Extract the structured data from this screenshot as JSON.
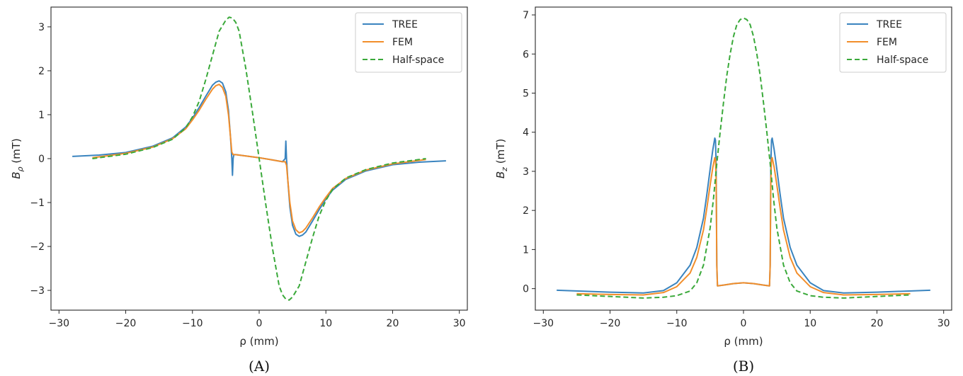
{
  "colors": {
    "TREE": "#3a84bf",
    "FEM": "#f28e2b",
    "Half-space": "#3aa93a",
    "axes": "#262626",
    "text": "#262626"
  },
  "chart_data": [
    {
      "type": "line",
      "panel_caption": "(A)",
      "title": "",
      "xlabel": "ρ (mm)",
      "ylabel_base": "B",
      "ylabel_sub": "ρ",
      "ylabel_unit": " (mT)",
      "xlim": [
        -31.2,
        31.2
      ],
      "ylim": [
        -3.45,
        3.45
      ],
      "xticks": [
        -30,
        -20,
        -10,
        0,
        10,
        20,
        30
      ],
      "xtick_labels": [
        "−30",
        "−20",
        "−10",
        "0",
        "10",
        "20",
        "30"
      ],
      "yticks": [
        -3,
        -2,
        -1,
        0,
        1,
        2,
        3
      ],
      "ytick_labels": [
        "−3",
        "−2",
        "−1",
        "0",
        "1",
        "2",
        "3"
      ],
      "grid": false,
      "legend_position": "top-right",
      "series": [
        {
          "name": "TREE",
          "style": "solid",
          "x": [
            -28,
            -24,
            -20,
            -16,
            -13,
            -11,
            -10,
            -9,
            -8,
            -7,
            -6.5,
            -6,
            -5.5,
            -5,
            -4.6,
            -4.3,
            -4.1,
            -4.0,
            -3.9,
            -3.8,
            -3.5,
            -2,
            0,
            2,
            3.5,
            3.9,
            4.0,
            4.1,
            4.3,
            4.6,
            5,
            5.5,
            6,
            6.5,
            7,
            8,
            9,
            10,
            11,
            13,
            16,
            20,
            24,
            28
          ],
          "y": [
            0.05,
            0.08,
            0.14,
            0.28,
            0.47,
            0.72,
            0.92,
            1.16,
            1.42,
            1.67,
            1.74,
            1.77,
            1.72,
            1.52,
            1.1,
            0.5,
            0.0,
            -0.38,
            0.0,
            0.09,
            0.09,
            0.06,
            0.02,
            -0.03,
            -0.07,
            0.0,
            0.4,
            0.0,
            -0.5,
            -1.1,
            -1.52,
            -1.72,
            -1.77,
            -1.74,
            -1.67,
            -1.42,
            -1.16,
            -0.92,
            -0.72,
            -0.47,
            -0.28,
            -0.14,
            -0.08,
            -0.05
          ]
        },
        {
          "name": "FEM",
          "style": "solid",
          "x": [
            -25,
            -20,
            -16,
            -13,
            -11,
            -10,
            -9,
            -8,
            -7,
            -6.5,
            -6,
            -5.5,
            -5,
            -4.6,
            -4.3,
            -4.1,
            -3.9,
            -3.5,
            -2,
            0,
            2,
            3.5,
            3.9,
            4.1,
            4.3,
            4.6,
            5,
            5.5,
            6,
            6.5,
            7,
            8,
            9,
            10,
            11,
            13,
            16,
            20,
            25
          ],
          "y": [
            0.02,
            0.12,
            0.26,
            0.45,
            0.68,
            0.88,
            1.1,
            1.35,
            1.58,
            1.66,
            1.69,
            1.62,
            1.42,
            1.0,
            0.5,
            0.15,
            0.09,
            0.09,
            0.06,
            0.02,
            -0.03,
            -0.07,
            -0.07,
            -0.15,
            -0.5,
            -1.0,
            -1.42,
            -1.62,
            -1.69,
            -1.66,
            -1.58,
            -1.35,
            -1.1,
            -0.88,
            -0.68,
            -0.45,
            -0.26,
            -0.12,
            -0.02
          ]
        },
        {
          "name": "Half-space",
          "style": "dashed",
          "x": [
            -25,
            -20,
            -16,
            -13,
            -11,
            -10,
            -9,
            -8,
            -7,
            -6,
            -5,
            -4.5,
            -4,
            -3.5,
            -3,
            -2,
            -1,
            0,
            1,
            2,
            3,
            3.5,
            4,
            4.5,
            5,
            6,
            7,
            8,
            9,
            10,
            11,
            13,
            16,
            20,
            25
          ],
          "y": [
            0.0,
            0.1,
            0.25,
            0.44,
            0.7,
            0.95,
            1.3,
            1.8,
            2.35,
            2.9,
            3.15,
            3.22,
            3.2,
            3.1,
            2.9,
            2.05,
            1.05,
            0.0,
            -1.05,
            -2.05,
            -2.9,
            -3.1,
            -3.2,
            -3.22,
            -3.15,
            -2.9,
            -2.35,
            -1.8,
            -1.3,
            -0.95,
            -0.7,
            -0.44,
            -0.25,
            -0.1,
            0.0
          ]
        }
      ]
    },
    {
      "type": "line",
      "panel_caption": "(B)",
      "title": "",
      "xlabel": "ρ (mm)",
      "ylabel_base": "B",
      "ylabel_sub": "z",
      "ylabel_unit": " (mT)",
      "xlim": [
        -31.2,
        31.2
      ],
      "ylim": [
        -0.55,
        7.2
      ],
      "xticks": [
        -30,
        -20,
        -10,
        0,
        10,
        20,
        30
      ],
      "xtick_labels": [
        "−30",
        "−20",
        "−10",
        "0",
        "10",
        "20",
        "30"
      ],
      "yticks": [
        0,
        1,
        2,
        3,
        4,
        5,
        6,
        7
      ],
      "ytick_labels": [
        "0",
        "1",
        "2",
        "3",
        "4",
        "5",
        "6",
        "7"
      ],
      "grid": false,
      "legend_position": "top-right",
      "series": [
        {
          "name": "TREE",
          "style": "solid",
          "x": [
            -28,
            -20,
            -15,
            -12,
            -10,
            -8,
            -7,
            -6,
            -5.5,
            -5,
            -4.6,
            -4.3,
            -4.2,
            -4.1,
            -4.0,
            -3.9,
            -3,
            -1.5,
            0,
            1.5,
            3,
            3.9,
            4.0,
            4.1,
            4.2,
            4.3,
            4.6,
            5,
            5.5,
            6,
            7,
            8,
            10,
            12,
            15,
            20,
            28
          ],
          "y": [
            -0.04,
            -0.09,
            -0.11,
            -0.05,
            0.15,
            0.6,
            1.05,
            1.8,
            2.4,
            3.05,
            3.55,
            3.85,
            3.8,
            3.2,
            0.6,
            0.07,
            0.09,
            0.13,
            0.15,
            0.13,
            0.09,
            0.07,
            0.6,
            3.2,
            3.8,
            3.85,
            3.55,
            3.05,
            2.4,
            1.8,
            1.05,
            0.6,
            0.15,
            -0.05,
            -0.11,
            -0.09,
            -0.04
          ]
        },
        {
          "name": "FEM",
          "style": "solid",
          "x": [
            -25,
            -20,
            -15,
            -12,
            -10,
            -8,
            -7,
            -6,
            -5.5,
            -5,
            -4.6,
            -4.3,
            -4.2,
            -4.1,
            -4.0,
            -3.9,
            -3,
            -1.5,
            0,
            1.5,
            3,
            3.9,
            4.0,
            4.1,
            4.2,
            4.3,
            4.6,
            5,
            5.5,
            6,
            7,
            8,
            10,
            12,
            15,
            20,
            25
          ],
          "y": [
            -0.13,
            -0.15,
            -0.16,
            -0.1,
            0.05,
            0.4,
            0.8,
            1.5,
            2.05,
            2.65,
            3.1,
            3.35,
            3.3,
            2.8,
            0.6,
            0.07,
            0.09,
            0.13,
            0.15,
            0.13,
            0.09,
            0.07,
            0.6,
            2.8,
            3.3,
            3.35,
            3.1,
            2.65,
            2.05,
            1.5,
            0.8,
            0.4,
            0.05,
            -0.1,
            -0.16,
            -0.15,
            -0.13
          ]
        },
        {
          "name": "Half-space",
          "style": "dashed",
          "x": [
            -25,
            -20,
            -15,
            -12,
            -10,
            -8,
            -7,
            -6,
            -5,
            -4.5,
            -4,
            -3.5,
            -3,
            -2.5,
            -2,
            -1.5,
            -1,
            -0.5,
            0,
            0.5,
            1,
            1.5,
            2,
            2.5,
            3,
            3.5,
            4,
            4.5,
            5,
            6,
            7,
            8,
            10,
            12,
            15,
            20,
            25
          ],
          "y": [
            -0.16,
            -0.2,
            -0.24,
            -0.22,
            -0.18,
            -0.06,
            0.15,
            0.6,
            1.55,
            2.3,
            3.2,
            4.0,
            4.75,
            5.45,
            6.0,
            6.45,
            6.75,
            6.88,
            6.92,
            6.88,
            6.75,
            6.45,
            6.0,
            5.45,
            4.75,
            4.0,
            3.2,
            2.3,
            1.55,
            0.6,
            0.15,
            -0.06,
            -0.18,
            -0.22,
            -0.24,
            -0.2,
            -0.16
          ]
        }
      ]
    }
  ]
}
